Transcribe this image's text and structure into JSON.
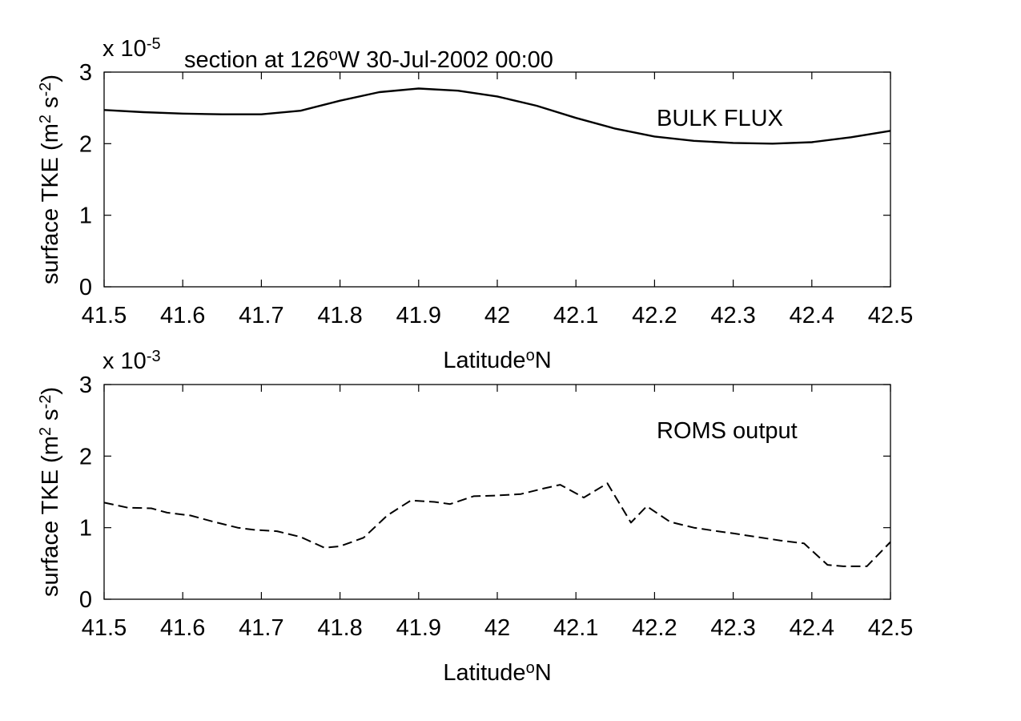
{
  "chart_data": [
    {
      "type": "line",
      "title": "section at 126°W 30-Jul-2002 00:00",
      "xlabel": "Latitude°N",
      "ylabel": "surface TKE (m² s⁻²)",
      "exponent_label": "x 10⁻⁵",
      "annotation": "BULK FLUX",
      "xlim": [
        41.5,
        42.5
      ],
      "ylim": [
        0,
        3
      ],
      "x_ticks": [
        "41.5",
        "41.6",
        "41.7",
        "41.8",
        "41.9",
        "42",
        "42.1",
        "42.2",
        "42.3",
        "42.4",
        "42.5"
      ],
      "y_ticks": [
        "0",
        "1",
        "2",
        "3"
      ],
      "line_style": "solid",
      "series": [
        {
          "x": [
            41.5,
            41.55,
            41.6,
            41.65,
            41.7,
            41.75,
            41.8,
            41.85,
            41.9,
            41.95,
            42.0,
            42.05,
            42.1,
            42.15,
            42.2,
            42.25,
            42.3,
            42.35,
            42.4,
            42.45,
            42.5
          ],
          "values": [
            2.47,
            2.44,
            2.42,
            2.41,
            2.41,
            2.46,
            2.6,
            2.72,
            2.77,
            2.74,
            2.66,
            2.53,
            2.36,
            2.21,
            2.1,
            2.04,
            2.01,
            2.0,
            2.02,
            2.09,
            2.18
          ]
        }
      ]
    },
    {
      "type": "line",
      "title": "",
      "xlabel": "Latitude°N",
      "ylabel": "surface TKE (m² s⁻²)",
      "exponent_label": "x 10⁻³",
      "annotation": "ROMS output",
      "xlim": [
        41.5,
        42.5
      ],
      "ylim": [
        0,
        3
      ],
      "x_ticks": [
        "41.5",
        "41.6",
        "41.7",
        "41.8",
        "41.9",
        "42",
        "42.1",
        "42.2",
        "42.3",
        "42.4",
        "42.5"
      ],
      "y_ticks": [
        "0",
        "1",
        "2",
        "3"
      ],
      "line_style": "dashed",
      "series": [
        {
          "x": [
            41.5,
            41.53,
            41.56,
            41.58,
            41.61,
            41.64,
            41.67,
            41.69,
            41.72,
            41.75,
            41.78,
            41.8,
            41.83,
            41.86,
            41.89,
            41.92,
            41.94,
            41.97,
            42.0,
            42.03,
            42.06,
            42.08,
            42.11,
            42.14,
            42.17,
            42.19,
            42.22,
            42.25,
            42.28,
            42.3,
            42.33,
            42.36,
            42.39,
            42.42,
            42.44,
            42.47,
            42.5
          ],
          "values": [
            1.35,
            1.28,
            1.27,
            1.21,
            1.17,
            1.08,
            1.0,
            0.97,
            0.95,
            0.87,
            0.72,
            0.74,
            0.86,
            1.17,
            1.38,
            1.36,
            1.33,
            1.44,
            1.45,
            1.47,
            1.55,
            1.6,
            1.42,
            1.62,
            1.07,
            1.3,
            1.08,
            1.0,
            0.95,
            0.92,
            0.87,
            0.82,
            0.78,
            0.48,
            0.46,
            0.46,
            0.8
          ]
        }
      ]
    }
  ]
}
